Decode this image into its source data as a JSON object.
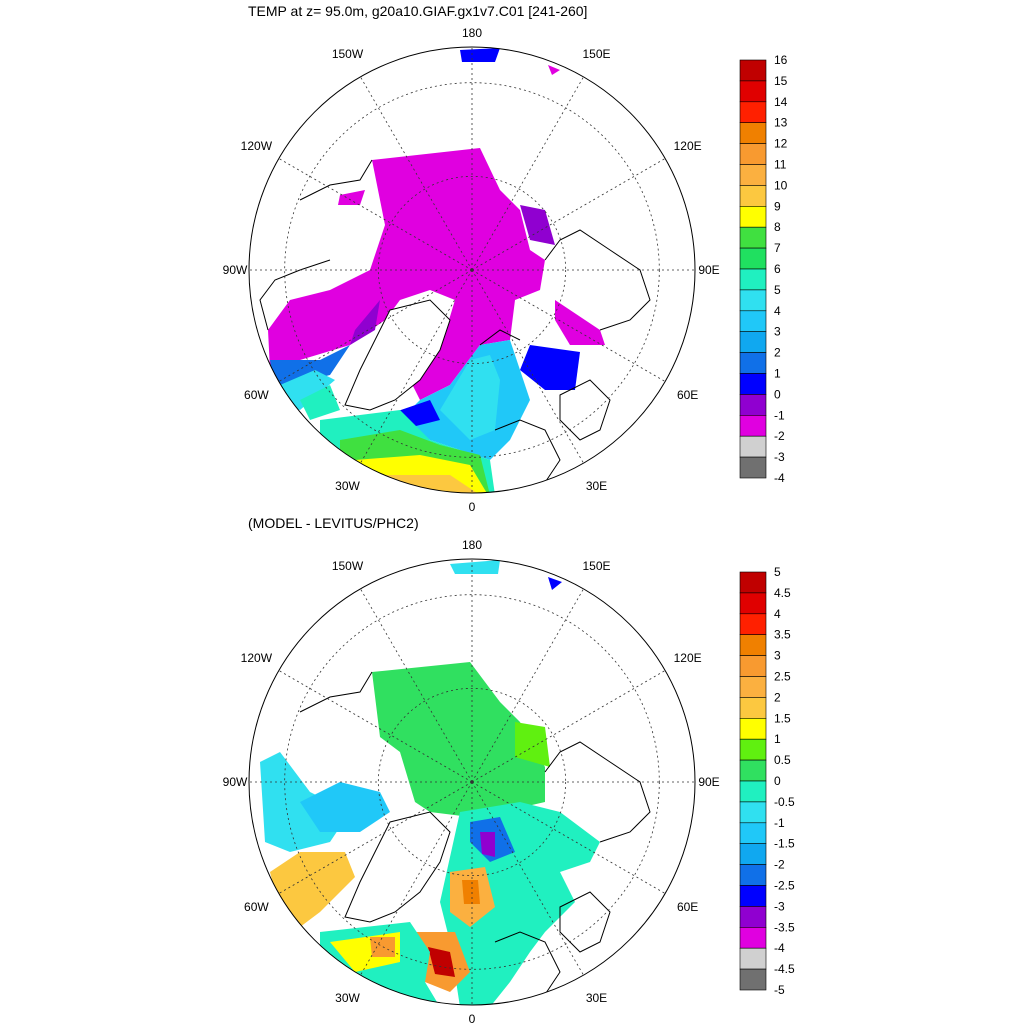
{
  "panels": [
    {
      "title": "TEMP at z=  95.0m, g20a10.GIAF.gx1v7.C01 [241-260]",
      "lon_labels": [
        "180",
        "150E",
        "120E",
        "90E",
        "60E",
        "30E",
        "0",
        "30W",
        "60W",
        "90W",
        "120W",
        "150W"
      ],
      "colorbar": {
        "ticks": [
          "16",
          "15",
          "14",
          "13",
          "12",
          "11",
          "10",
          "9",
          "8",
          "7",
          "6",
          "5",
          "4",
          "3",
          "2",
          "1",
          "0",
          "-1",
          "-2",
          "-3",
          "-4"
        ],
        "colors": [
          "#c00000",
          "#e00000",
          "#ff2000",
          "#f08000",
          "#f89a30",
          "#fbb040",
          "#fcc840",
          "#ffff00",
          "#40e040",
          "#20e060",
          "#20f0c0",
          "#30e0f0",
          "#20c8f8",
          "#10a8f0",
          "#1070e8",
          "#0000ff",
          "#9000d0",
          "#e000e0",
          "#d0d0d0",
          "#707070"
        ]
      }
    },
    {
      "title": "(MODEL - LEVITUS/PHC2)",
      "lon_labels": [
        "180",
        "150E",
        "120E",
        "90E",
        "60E",
        "30E",
        "0",
        "30W",
        "60W",
        "90W",
        "120W",
        "150W"
      ],
      "colorbar": {
        "ticks": [
          "5",
          "4.5",
          "4",
          "3.5",
          "3",
          "2.5",
          "2",
          "1.5",
          "1",
          "0.5",
          "0",
          "-0.5",
          "-1",
          "-1.5",
          "-2",
          "-2.5",
          "-3",
          "-3.5",
          "-4",
          "-4.5",
          "-5"
        ],
        "colors": [
          "#c00000",
          "#e00000",
          "#ff2000",
          "#f08000",
          "#f89a30",
          "#fbb040",
          "#fcc840",
          "#ffff00",
          "#60f010",
          "#30e060",
          "#20f0c0",
          "#30e0f0",
          "#20c8f8",
          "#10a8f0",
          "#1070e8",
          "#0000ff",
          "#9000d0",
          "#e000e0",
          "#d0d0d0",
          "#707070"
        ]
      }
    }
  ]
}
